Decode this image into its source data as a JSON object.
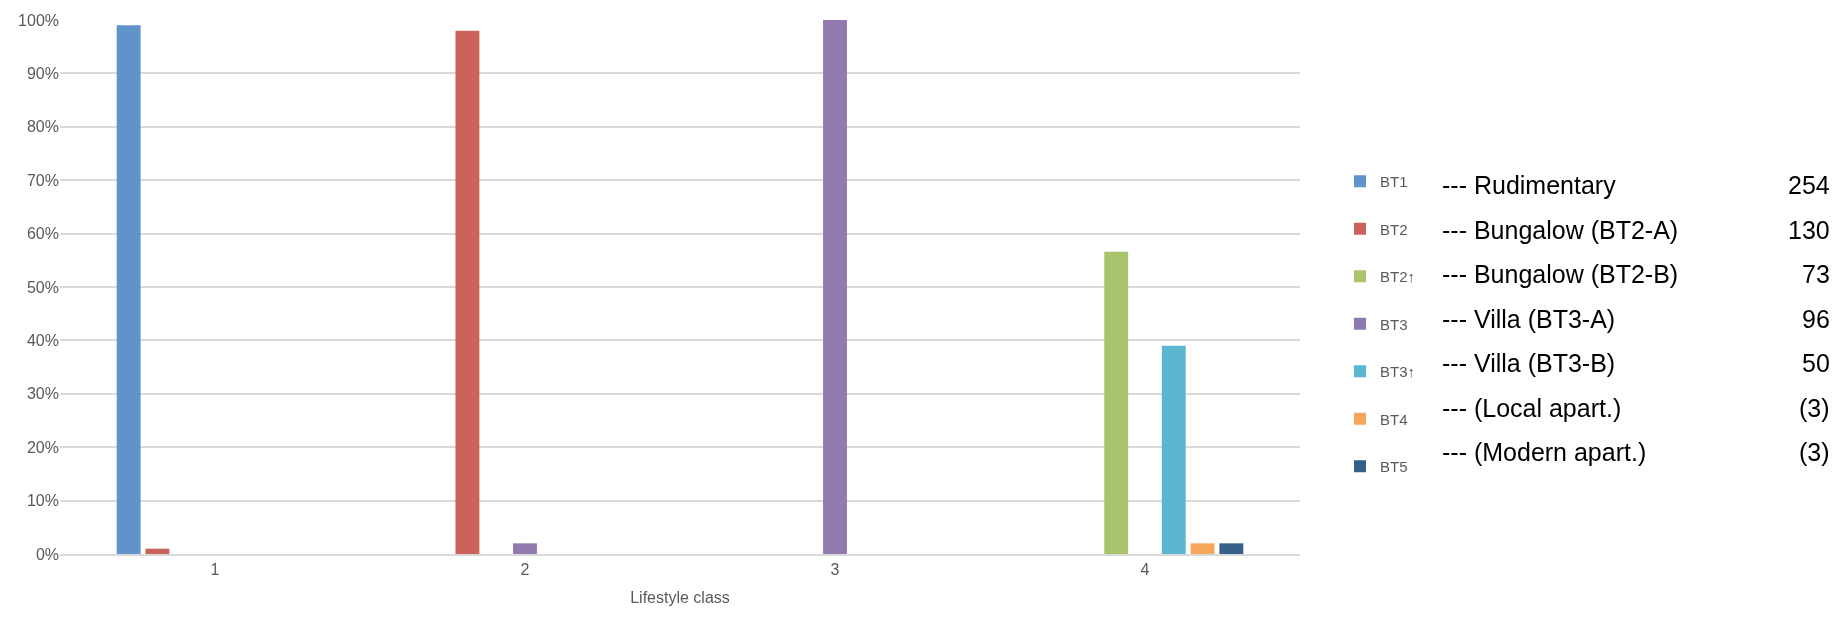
{
  "chart_data": {
    "type": "bar",
    "xlabel": "Lifestyle class",
    "categories": [
      "1",
      "2",
      "3",
      "4"
    ],
    "series": [
      {
        "name": "BT1",
        "color": "#5f93c9",
        "values": [
          99,
          0,
          0,
          0
        ]
      },
      {
        "name": "BT2",
        "color": "#cb635b",
        "values": [
          1,
          98,
          0,
          0
        ]
      },
      {
        "name": "BT2↑",
        "color": "#a9c46c",
        "values": [
          0,
          0,
          0,
          56.6
        ]
      },
      {
        "name": "BT3",
        "color": "#927ab1",
        "values": [
          0,
          2,
          100,
          0
        ]
      },
      {
        "name": "BT3↑",
        "color": "#5bb7d0",
        "values": [
          0,
          0,
          0,
          39
        ]
      },
      {
        "name": "BT4",
        "color": "#f6a65a",
        "values": [
          0,
          0,
          0,
          2
        ]
      },
      {
        "name": "BT5",
        "color": "#346089",
        "values": [
          0,
          0,
          0,
          2
        ]
      }
    ],
    "ylim": [
      0,
      100
    ],
    "yticks": [
      {
        "value": 0,
        "label": "0%"
      },
      {
        "value": 10,
        "label": "10%"
      },
      {
        "value": 20,
        "label": "20%"
      },
      {
        "value": 30,
        "label": "30%"
      },
      {
        "value": 40,
        "label": "40%"
      },
      {
        "value": 50,
        "label": "50%"
      },
      {
        "value": 60,
        "label": "60%"
      },
      {
        "value": 70,
        "label": "70%"
      },
      {
        "value": 80,
        "label": "80%"
      },
      {
        "value": 90,
        "label": "90%"
      },
      {
        "value": 100,
        "label": "100%"
      }
    ],
    "grid": "y",
    "legend": "right",
    "annotations": [
      "--- Rudimentary",
      "254",
      "--- Bungalow (BT2-A)",
      "130",
      "--- Bungalow (BT2-B)",
      "73",
      "--- Villa (BT3-A)",
      "96",
      "--- Villa (BT3-B)",
      "50",
      "--- (Local apart.)",
      "(3)",
      "--- (Modern apart.)",
      "(3)"
    ]
  }
}
